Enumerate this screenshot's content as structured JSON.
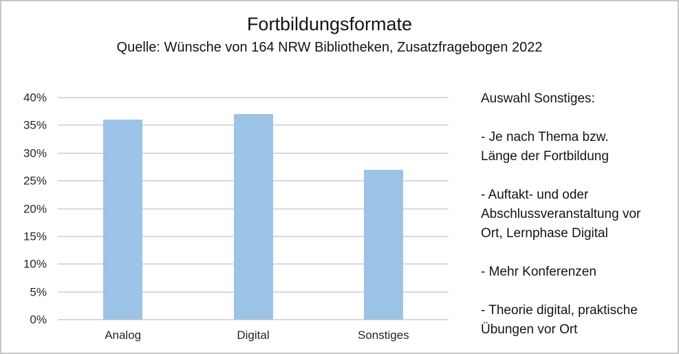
{
  "chart_data": {
    "type": "bar",
    "title": "Fortbildungsformate",
    "subtitle": "Quelle: Wünsche von 164 NRW Bibliotheken, Zusatzfragebogen 2022",
    "categories": [
      "Analog",
      "Digital",
      "Sonstiges"
    ],
    "values": [
      36,
      37,
      27
    ],
    "unit": "%",
    "xlabel": "",
    "ylabel": "",
    "ylim": [
      0,
      40
    ],
    "ytick_step": 5,
    "ytick_labels": [
      "0%",
      "5%",
      "10%",
      "15%",
      "20%",
      "25%",
      "30%",
      "35%",
      "40%"
    ],
    "grid": true,
    "legend": "none",
    "bar_color": "#9dc3e6",
    "gridline_color": "#d9d9d9"
  },
  "sidebar": {
    "heading": "Auswahl Sonstiges:",
    "items": [
      "- Je nach Thema bzw.\nLänge der Fortbildung",
      "- Auftakt- und oder\nAbschlussveranstaltung vor\nOrt, Lernphase Digital",
      "- Mehr Konferenzen",
      "- Theorie digital, praktische\nÜbungen vor Ort"
    ]
  }
}
